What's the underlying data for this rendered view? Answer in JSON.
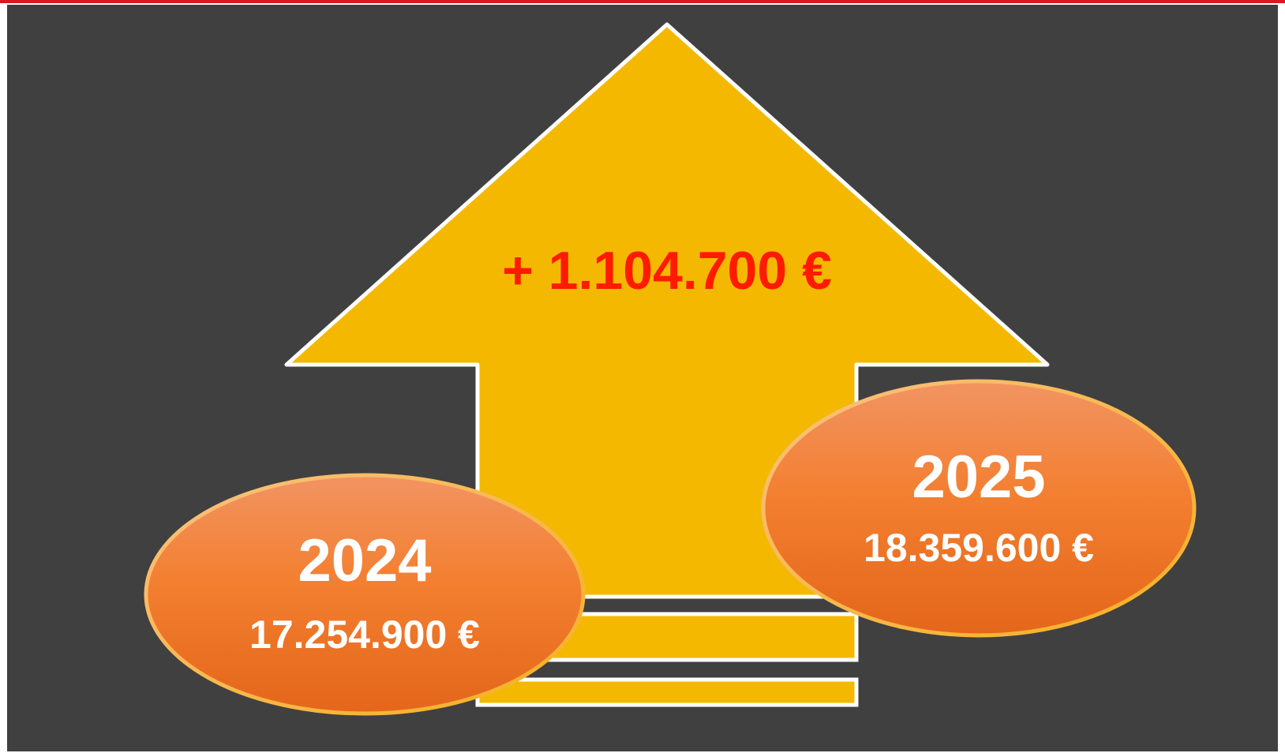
{
  "headline": "+ 1.104.700 €",
  "items": [
    {
      "year": "2024",
      "amount": "17.254.900 €"
    },
    {
      "year": "2025",
      "amount": "18.359.600 €"
    }
  ]
}
